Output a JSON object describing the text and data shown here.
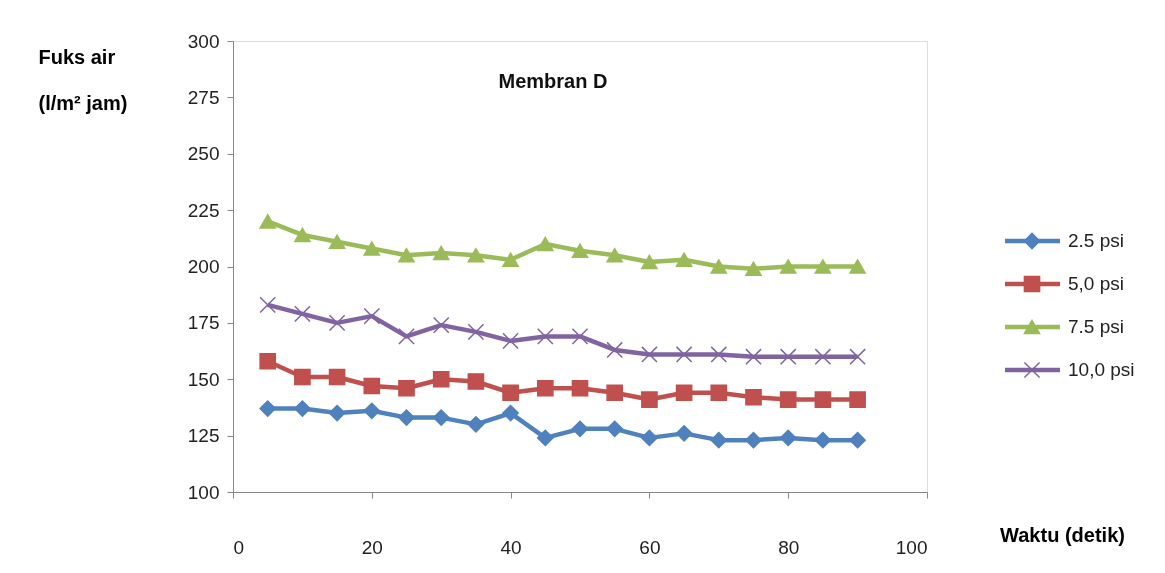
{
  "chart_data": {
    "type": "line",
    "title": "Membran D",
    "xlabel": "Waktu  (detik)",
    "ylabel": "Fuks air (l/m² jam)",
    "x": [
      5,
      10,
      15,
      20,
      25,
      30,
      35,
      40,
      45,
      50,
      55,
      60,
      65,
      70,
      75,
      80,
      85,
      90
    ],
    "series": [
      {
        "name": "2.5 psi",
        "color": "#4f81bd",
        "marker": "diamond",
        "values": [
          137,
          137,
          135,
          136,
          133,
          133,
          130,
          135,
          124,
          128,
          128,
          124,
          126,
          123,
          123,
          124,
          123,
          123
        ]
      },
      {
        "name": "5,0 psi",
        "color": "#c0504d",
        "marker": "square",
        "values": [
          158,
          151,
          151,
          147,
          146,
          150,
          149,
          144,
          146,
          146,
          144,
          141,
          144,
          144,
          142,
          141,
          141,
          141
        ]
      },
      {
        "name": "7.5 psi",
        "color": "#9bbb59",
        "marker": "triangle",
        "values": [
          220,
          214,
          211,
          208,
          205,
          206,
          205,
          203,
          210,
          207,
          205,
          202,
          203,
          200,
          199,
          200,
          200,
          200
        ]
      },
      {
        "name": "10,0 psi",
        "color": "#8064a2",
        "marker": "cross",
        "values": [
          183,
          179,
          175,
          178,
          169,
          174,
          171,
          167,
          169,
          169,
          163,
          161,
          161,
          161,
          160,
          160,
          160,
          160
        ]
      }
    ],
    "xlim": [
      0,
      100
    ],
    "xticks": [
      0,
      20,
      40,
      60,
      80,
      100
    ],
    "ylim": [
      100,
      300
    ],
    "yticks": [
      100,
      125,
      150,
      175,
      200,
      225,
      250,
      275,
      300
    ],
    "grid": false,
    "legend": "right",
    "line_style": "solid"
  }
}
